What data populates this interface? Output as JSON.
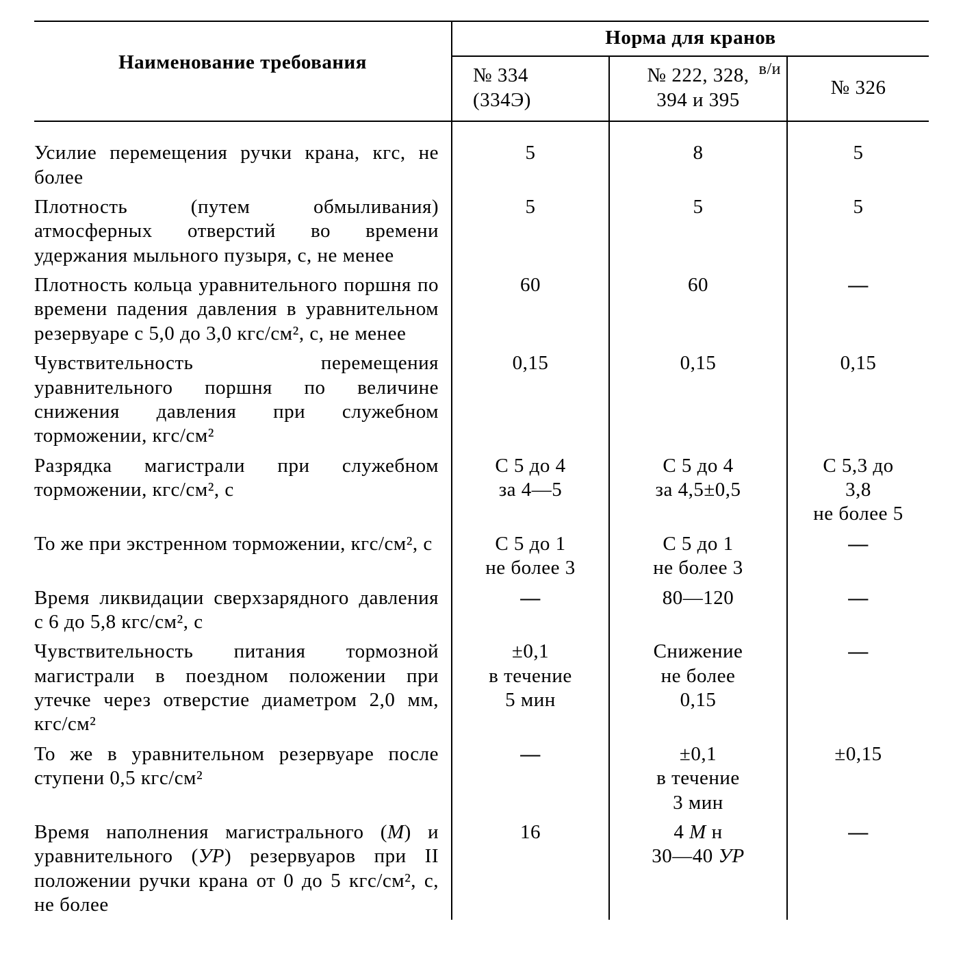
{
  "header": {
    "requirement": "Наименование требования",
    "groupTitle": "Норма для кранов",
    "col1_line1": "№ 334",
    "col1_line2": "(334Э)",
    "col2_line1": "№ 222, 328,",
    "col2_line2": "394 и 395",
    "col2_annot": "в/и",
    "col3": "№ 326"
  },
  "rows": [
    {
      "req": "Усилие перемещения ручки крана, кгс, не более",
      "c1": "5",
      "c2": "8",
      "c3": "5"
    },
    {
      "req": "Плотность (путем обмыливания) атмосферных отверстий во времени удержания мыльного пузыря, с, не менее",
      "c1": "5",
      "c2": "5",
      "c3": "5"
    },
    {
      "req": "Плотность кольца уравнительного поршня по времени падения давления в уравнительном резервуаре с 5,0 до 3,0 кгс/см², с, не менее",
      "c1": "60",
      "c2": "60",
      "c3": "—"
    },
    {
      "req": "Чувствительность перемещения уравнительного поршня по величине снижения давления при служебном торможении, кгс/см²",
      "c1": "0,15",
      "c2": "0,15",
      "c3": "0,15"
    },
    {
      "req": "Разрядка магистрали при служебном торможении, кгс/см², с",
      "c1": "С 5 до 4\nза 4—5",
      "c2": "С 5 до 4\nза 4,5±0,5",
      "c3": "С 5,3 до\n3,8\nне более 5"
    },
    {
      "req": "То же при экстренном торможении, кгс/см², с",
      "c1": "С 5 до 1\nне более 3",
      "c2": "С 5 до 1\nне более 3",
      "c3": "—"
    },
    {
      "req": "Время ликвидации сверхзарядного давления с 6 до 5,8 кгс/см², с",
      "c1": "—",
      "c2": "80—120",
      "c3": "—"
    },
    {
      "req": "Чувствительность питания тормозной магистрали в поездном положении при утечке через отверстие диаметром 2,0 мм, кгс/см²",
      "c1": "±0,1\nв течение\n5 мин",
      "c2": "Снижение\nне более\n0,15",
      "c3": "—"
    },
    {
      "req": "То же в уравнительном резервуаре после ступени 0,5 кгс/см²",
      "c1": "—",
      "c2": "±0,1\nв течение\n3 мин",
      "c3": "±0,15"
    }
  ],
  "lastRow": {
    "reqParts": {
      "p1": "Время наполнения магистрального (",
      "m": "М",
      "p2": ") и уравнительного (",
      "ur": "УР",
      "p3": ") резервуаров при II положении ручки крана от 0 до 5 кгс/см², с, не более"
    },
    "c1": "16",
    "c2": {
      "l1a": "4 ",
      "l1m": "М",
      "l1b": " н",
      "l2a": "30—40 ",
      "l2ur": "УР"
    },
    "c3": "—"
  },
  "style": {
    "fontFamily": "Times New Roman, Liberation Serif, serif",
    "fontSizePx": 29,
    "borderColor": "#000000",
    "textColor": "#000000",
    "backgroundColor": "#ffffff"
  }
}
